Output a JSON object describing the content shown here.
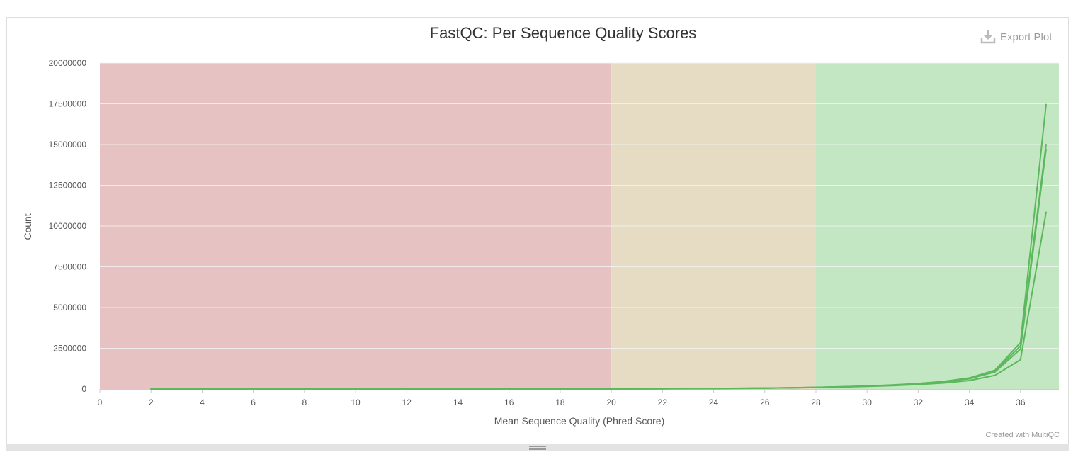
{
  "export": {
    "label": "Export Plot",
    "icon": "download-icon"
  },
  "credit": "Created with MultiQC",
  "colors": {
    "fail_band": "#e6c2c2",
    "warn_band": "#e6dcc4",
    "pass_band": "#c3e6c3",
    "series": "#5cb85c",
    "grid": "#f2f2f2",
    "axis_text": "#555555",
    "title": "#333333"
  },
  "chart_data": {
    "type": "line",
    "title": "FastQC: Per Sequence Quality Scores",
    "xlabel": "Mean Sequence Quality (Phred Score)",
    "ylabel": "Count",
    "xlim": [
      0,
      37.5
    ],
    "ylim": [
      0,
      20000000
    ],
    "x_ticks": [
      "0",
      "2",
      "4",
      "6",
      "8",
      "10",
      "12",
      "14",
      "16",
      "18",
      "20",
      "22",
      "24",
      "26",
      "28",
      "30",
      "32",
      "34",
      "36"
    ],
    "y_ticks": [
      "0",
      "2500000",
      "5000000",
      "7500000",
      "10000000",
      "12500000",
      "15000000",
      "17500000",
      "20000000"
    ],
    "grid": true,
    "bands": [
      {
        "from": 0,
        "to": 20,
        "status": "fail"
      },
      {
        "from": 20,
        "to": 28,
        "status": "warn"
      },
      {
        "from": 28,
        "to": 37.5,
        "status": "pass"
      }
    ],
    "x": [
      2,
      3,
      4,
      5,
      6,
      7,
      8,
      9,
      10,
      11,
      12,
      13,
      14,
      15,
      16,
      17,
      18,
      19,
      20,
      21,
      22,
      23,
      24,
      25,
      26,
      27,
      28,
      29,
      30,
      31,
      32,
      33,
      34,
      35,
      36,
      37
    ],
    "series": [
      {
        "values": [
          1000,
          1200,
          1500,
          1800,
          2000,
          2300,
          2600,
          3000,
          3400,
          3800,
          4300,
          4900,
          5600,
          6400,
          7300,
          8400,
          9700,
          11000,
          13000,
          16000,
          20000,
          26000,
          35000,
          47000,
          60000,
          80000,
          105000,
          140000,
          185000,
          250000,
          340000,
          470000,
          680000,
          1150000,
          2850000,
          17450000
        ]
      },
      {
        "values": [
          900,
          1100,
          1400,
          1700,
          1900,
          2200,
          2500,
          2900,
          3300,
          3700,
          4200,
          4800,
          5500,
          6300,
          7200,
          8300,
          9500,
          10800,
          12500,
          15500,
          19000,
          25000,
          33000,
          45000,
          58000,
          77000,
          100000,
          135000,
          180000,
          240000,
          330000,
          450000,
          650000,
          1100000,
          2650000,
          15000000
        ]
      },
      {
        "values": [
          800,
          1000,
          1300,
          1600,
          1800,
          2100,
          2400,
          2800,
          3200,
          3600,
          4100,
          4700,
          5400,
          6200,
          7100,
          8200,
          9400,
          10600,
          12000,
          15000,
          18500,
          24000,
          32000,
          43000,
          56000,
          75000,
          98000,
          130000,
          175000,
          235000,
          320000,
          440000,
          630000,
          1050000,
          2450000,
          14700000
        ]
      },
      {
        "values": [
          700,
          900,
          1200,
          1500,
          1700,
          2000,
          2300,
          2700,
          3100,
          3500,
          4000,
          4600,
          5300,
          6100,
          7000,
          8100,
          9200,
          10400,
          11500,
          14000,
          17000,
          22000,
          29000,
          39000,
          52000,
          70000,
          90000,
          120000,
          160000,
          210000,
          280000,
          370000,
          520000,
          840000,
          1800000,
          10850000
        ]
      }
    ]
  }
}
